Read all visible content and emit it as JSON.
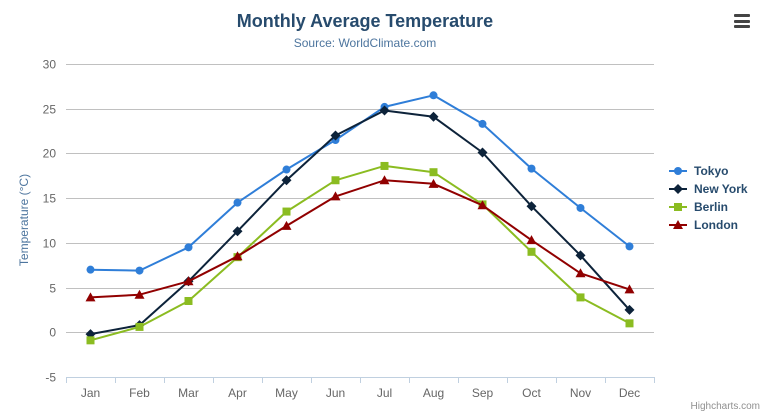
{
  "chart_data": {
    "type": "line",
    "title": "Monthly Average Temperature",
    "subtitle": "Source: WorldClimate.com",
    "xlabel": "",
    "ylabel": "Temperature (°C)",
    "categories": [
      "Jan",
      "Feb",
      "Mar",
      "Apr",
      "May",
      "Jun",
      "Jul",
      "Aug",
      "Sep",
      "Oct",
      "Nov",
      "Dec"
    ],
    "ylim": [
      -5,
      30
    ],
    "ytick_step": 5,
    "grid": true,
    "legend_position": "right",
    "series": [
      {
        "name": "Tokyo",
        "color": "#2f7ed8",
        "symbol": "circle",
        "values": [
          7.0,
          6.9,
          9.5,
          14.5,
          18.2,
          21.5,
          25.2,
          26.5,
          23.3,
          18.3,
          13.9,
          9.6
        ]
      },
      {
        "name": "New York",
        "color": "#0d233a",
        "symbol": "diamond",
        "values": [
          -0.2,
          0.8,
          5.7,
          11.3,
          17.0,
          22.0,
          24.8,
          24.1,
          20.1,
          14.1,
          8.6,
          2.5
        ]
      },
      {
        "name": "Berlin",
        "color": "#8bbc21",
        "symbol": "square",
        "values": [
          -0.9,
          0.6,
          3.5,
          8.4,
          13.5,
          17.0,
          18.6,
          17.9,
          14.3,
          9.0,
          3.9,
          1.0
        ]
      },
      {
        "name": "London",
        "color": "#910000",
        "symbol": "triangle",
        "values": [
          3.9,
          4.2,
          5.7,
          8.5,
          11.9,
          15.2,
          17.0,
          16.6,
          14.2,
          10.3,
          6.6,
          4.8
        ]
      }
    ],
    "colors": {
      "title": "#274b6d",
      "subtitle": "#4d759e",
      "axis_label": "#666666",
      "gridline": "#c0c0c0",
      "axis_line": "#c0d0e0"
    }
  },
  "credits": {
    "label": "Highcharts.com"
  }
}
